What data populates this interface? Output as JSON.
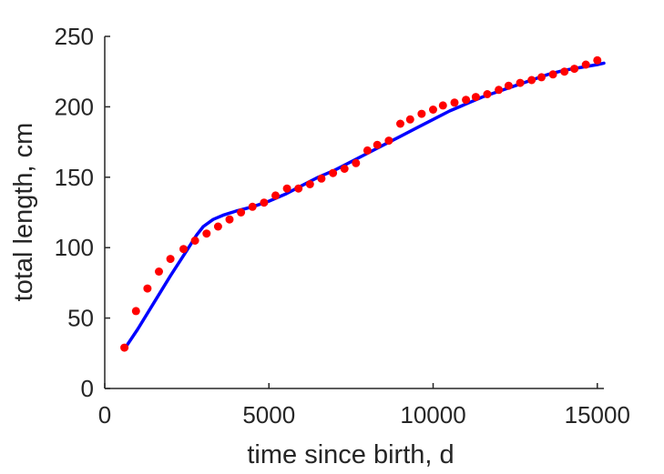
{
  "chart_data": {
    "type": "scatter",
    "xlabel": "time since birth, d",
    "ylabel": "total length, cm",
    "xlim": [
      0,
      15200
    ],
    "ylim": [
      0,
      250
    ],
    "xticks": [
      0,
      5000,
      10000,
      15000
    ],
    "yticks": [
      0,
      50,
      100,
      150,
      200,
      250
    ],
    "xtick_labels": [
      "0",
      "5000",
      "10000",
      "15000"
    ],
    "ytick_labels": [
      "0",
      "50",
      "100",
      "150",
      "200",
      "250"
    ],
    "grid": false,
    "series": [
      {
        "kind": "points",
        "color": "#ff0000",
        "x": [
          600,
          950,
          1300,
          1650,
          2000,
          2400,
          2750,
          3100,
          3450,
          3800,
          4150,
          4500,
          4850,
          5200,
          5550,
          5900,
          6250,
          6600,
          6950,
          7300,
          7650,
          8000,
          8300,
          8650,
          9000,
          9300,
          9650,
          10000,
          10300,
          10650,
          11000,
          11300,
          11650,
          12000,
          12300,
          12650,
          13000,
          13300,
          13650,
          14000,
          14300,
          14650,
          15000
        ],
        "y": [
          29,
          55,
          71,
          83,
          92,
          99,
          105,
          110,
          115,
          120,
          125,
          129,
          132,
          137,
          142,
          142,
          145,
          149,
          153,
          156,
          160,
          169,
          173,
          176,
          188,
          191,
          195,
          198,
          201,
          203,
          205,
          207,
          209,
          212,
          215,
          217,
          219,
          221,
          223,
          225,
          227,
          230,
          233
        ]
      },
      {
        "kind": "line",
        "color": "#0000ff",
        "x": [
          600,
          1000,
          1500,
          2000,
          2500,
          2800,
          3000,
          3300,
          3600,
          4000,
          4500,
          5000,
          5500,
          6000,
          6500,
          7000,
          7500,
          8000,
          8500,
          9000,
          9500,
          10000,
          10500,
          11000,
          11500,
          12000,
          12500,
          13000,
          13500,
          14000,
          14500,
          15000,
          15200
        ],
        "y": [
          28,
          42,
          61,
          80,
          98,
          109,
          115,
          120,
          123,
          126,
          129,
          133,
          138,
          144,
          150,
          155,
          161,
          167,
          173,
          179,
          185,
          191,
          197,
          202,
          207,
          211,
          215,
          219,
          223,
          226,
          228,
          230,
          231
        ]
      }
    ]
  }
}
